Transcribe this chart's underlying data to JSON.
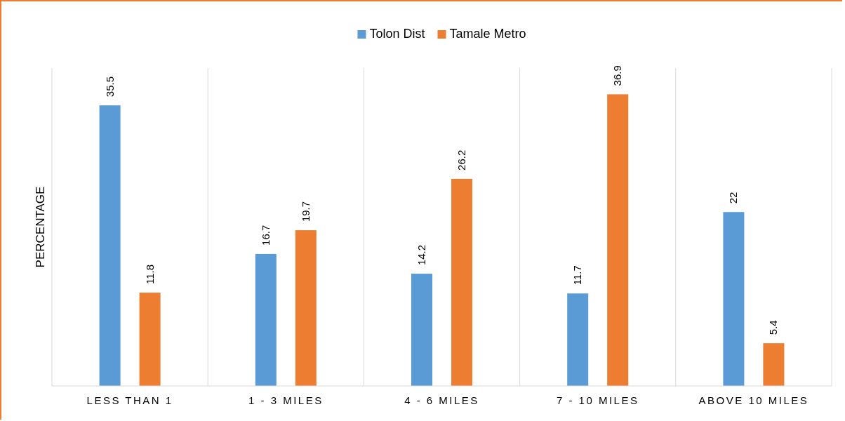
{
  "chart_data": {
    "type": "bar",
    "ylabel": "PERCENTAGE",
    "categories": [
      "LESS THAN 1",
      "1 - 3 MILES",
      "4 - 6 MILES",
      "7 - 10 MILES",
      "ABOVE 10 MILES"
    ],
    "series": [
      {
        "name": "Tolon Dist",
        "color": "#5b9bd5",
        "values": [
          35.5,
          16.7,
          14.2,
          11.7,
          22
        ]
      },
      {
        "name": "Tamale Metro",
        "color": "#ed7d31",
        "values": [
          11.8,
          19.7,
          26.2,
          36.9,
          5.4
        ]
      }
    ],
    "data_labels": true,
    "grid": "x",
    "legend": "top"
  }
}
